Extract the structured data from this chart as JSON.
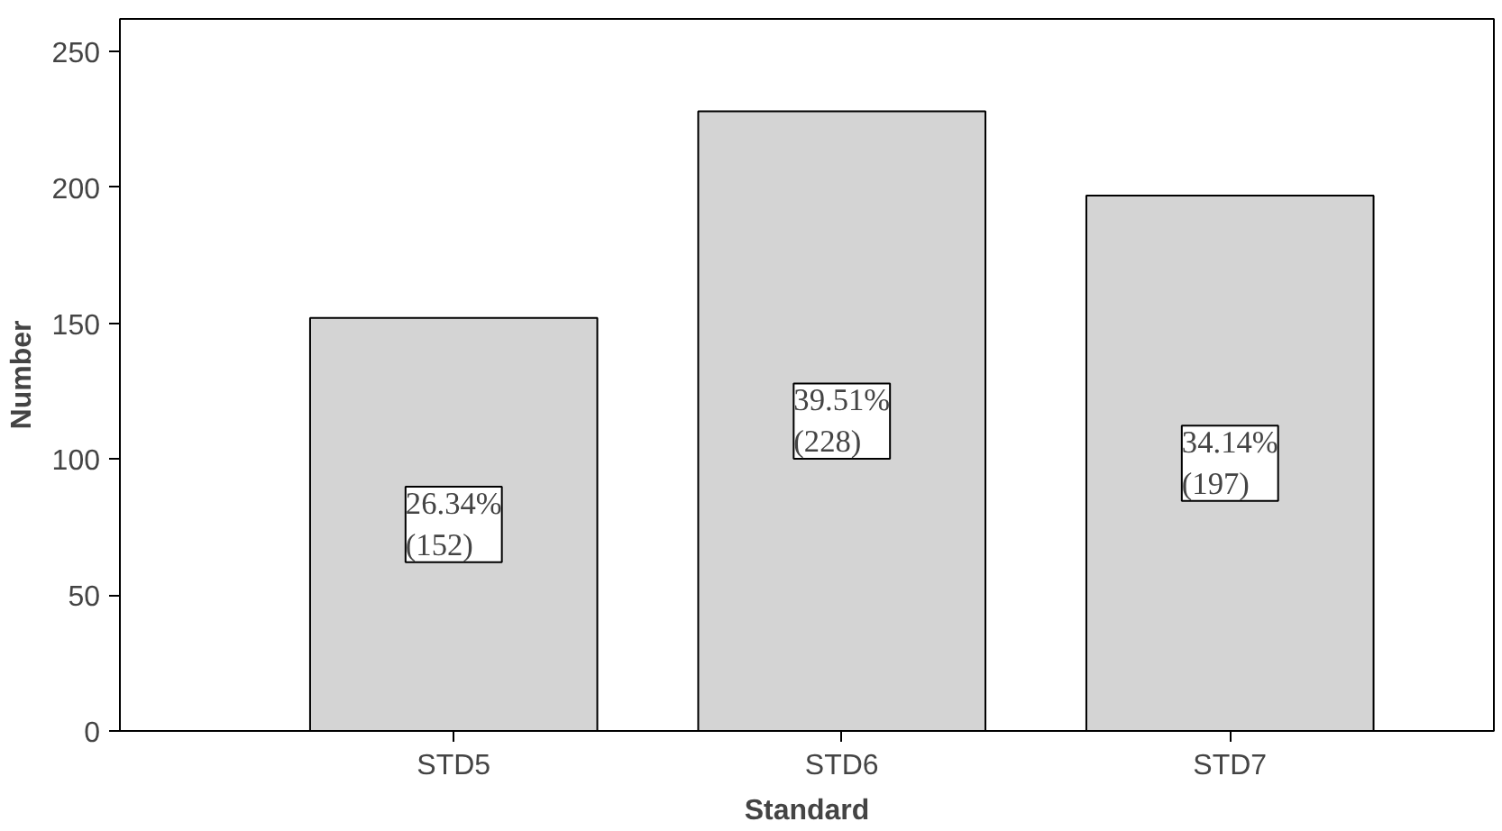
{
  "chart_data": {
    "type": "bar",
    "xlabel": "Standard",
    "ylabel": "Number",
    "categories": [
      "STD5",
      "STD6",
      "STD7"
    ],
    "values": [
      152,
      228,
      197
    ],
    "value_labels": [
      "26.34%\n(152)",
      "39.51%\n(228)",
      "34.14%\n(197)"
    ],
    "color": "#d4d4d4",
    "ylim": [
      0,
      262
    ],
    "yticks": [
      0,
      50,
      100,
      150,
      200,
      250
    ],
    "grid": false
  }
}
